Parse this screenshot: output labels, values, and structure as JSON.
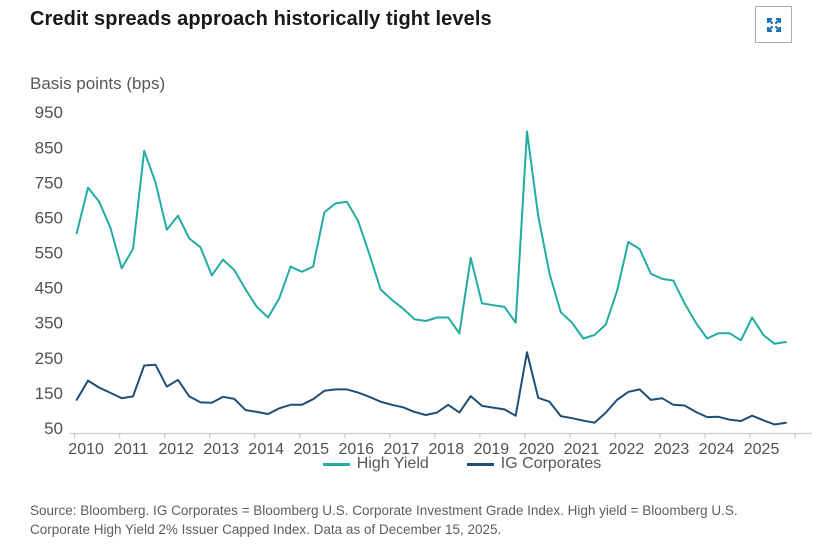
{
  "header": {
    "expand_button": {
      "icon": "expand-arrows-icon",
      "color": "#1c6fb4"
    }
  },
  "chart_data": {
    "type": "line",
    "title": "Credit spreads approach historically tight levels",
    "ylabel": "Basis points (bps)",
    "xlabel": "",
    "frequency": "quarterly",
    "x_range": [
      "2010-Q1",
      "2025-Q4"
    ],
    "ylim": [
      50,
      950
    ],
    "grid": false,
    "legend_position": "bottom",
    "yticks": [
      950,
      850,
      750,
      650,
      550,
      450,
      350,
      250,
      150,
      50
    ],
    "xticklabels": [
      "2010",
      "2011",
      "2012",
      "2013",
      "2014",
      "2015",
      "2016",
      "2017",
      "2018",
      "2019",
      "2020",
      "2021",
      "2022",
      "2023",
      "2024",
      "2025"
    ],
    "series": [
      {
        "name": "High Yield",
        "color": "#23aca3",
        "values": [
          605,
          735,
          695,
          620,
          505,
          560,
          840,
          750,
          615,
          655,
          590,
          565,
          485,
          530,
          500,
          445,
          395,
          365,
          420,
          510,
          495,
          510,
          665,
          690,
          695,
          640,
          545,
          445,
          415,
          390,
          360,
          355,
          365,
          365,
          320,
          535,
          405,
          400,
          395,
          350,
          895,
          655,
          490,
          380,
          350,
          305,
          315,
          345,
          440,
          580,
          560,
          490,
          475,
          470,
          405,
          350,
          305,
          320,
          320,
          300,
          365,
          315,
          290,
          295
        ]
      },
      {
        "name": "IG Corporates",
        "color": "#1e4f77",
        "values": [
          130,
          185,
          165,
          150,
          135,
          140,
          228,
          230,
          168,
          187,
          140,
          123,
          122,
          139,
          133,
          101,
          96,
          90,
          106,
          116,
          116,
          132,
          156,
          160,
          160,
          151,
          139,
          125,
          116,
          109,
          96,
          87,
          94,
          116,
          94,
          141,
          113,
          108,
          103,
          85,
          266,
          136,
          125,
          84,
          78,
          71,
          65,
          94,
          130,
          153,
          160,
          130,
          135,
          116,
          114,
          96,
          81,
          82,
          74,
          70,
          85,
          72,
          60,
          65
        ]
      }
    ],
    "axis_text_color": "#4d5155",
    "axis_line_color": "#c9ccce"
  },
  "footer": {
    "source_lines": [
      "Source: Bloomberg. IG Corporates = Bloomberg U.S. Corporate Investment Grade Index. High yield = Bloomberg U.S.",
      "Corporate High Yield 2% Issuer Capped Index. Data as of December 15, 2025."
    ]
  }
}
